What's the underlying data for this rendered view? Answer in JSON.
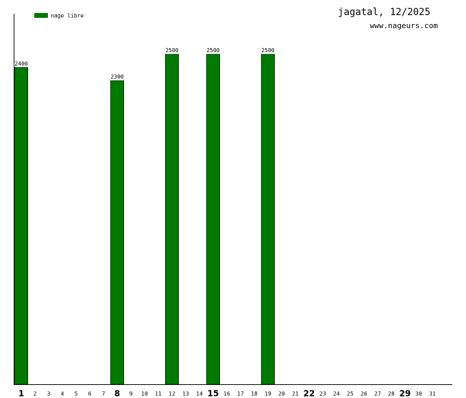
{
  "chart_data": {
    "type": "bar",
    "title": "jagatal, 12/2025",
    "subtitle": "www.nageurs.com",
    "categories": [
      "1",
      "2",
      "3",
      "4",
      "5",
      "6",
      "7",
      "8",
      "9",
      "10",
      "11",
      "12",
      "13",
      "14",
      "15",
      "16",
      "17",
      "18",
      "19",
      "20",
      "21",
      "22",
      "23",
      "24",
      "25",
      "26",
      "27",
      "28",
      "29",
      "30",
      "31"
    ],
    "series": [
      {
        "name": "nage libre",
        "color": "#007a00",
        "values": [
          2400,
          null,
          null,
          null,
          null,
          null,
          null,
          2300,
          null,
          null,
          null,
          2500,
          null,
          null,
          2500,
          null,
          null,
          null,
          2500,
          null,
          null,
          null,
          null,
          null,
          null,
          null,
          null,
          null,
          null,
          null,
          null
        ]
      }
    ],
    "ylim": [
      0,
      2805
    ]
  }
}
